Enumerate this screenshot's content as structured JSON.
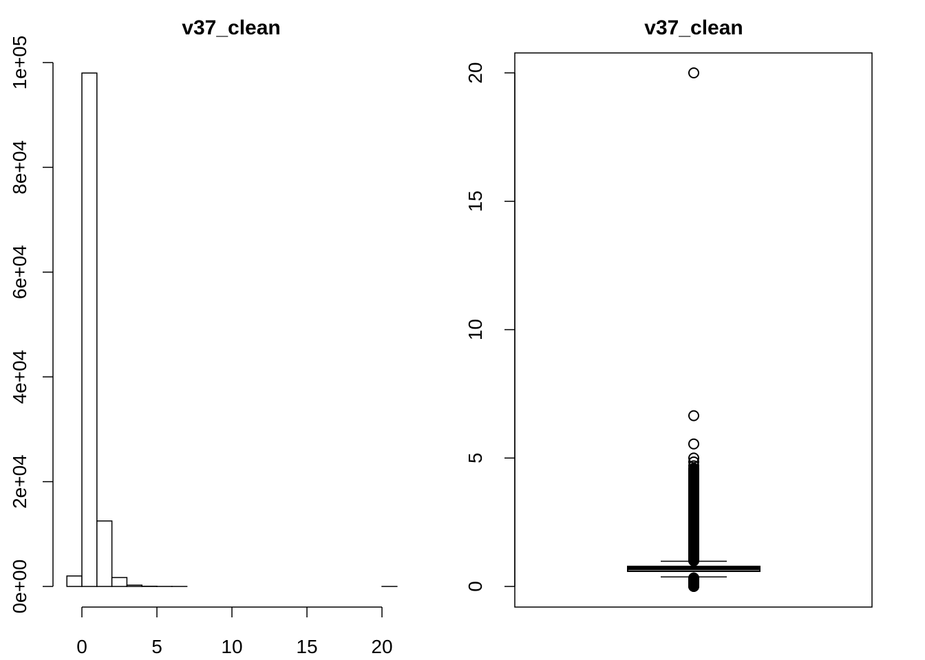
{
  "chart_data": [
    {
      "type": "histogram",
      "title": "v37_clean",
      "xlabel": "",
      "ylabel": "",
      "bin_width": 1,
      "bins": [
        {
          "x0": -1,
          "x1": 0,
          "count": 2000
        },
        {
          "x0": 0,
          "x1": 1,
          "count": 98000
        },
        {
          "x0": 1,
          "x1": 2,
          "count": 12500
        },
        {
          "x0": 2,
          "x1": 3,
          "count": 1700
        },
        {
          "x0": 3,
          "x1": 4,
          "count": 250
        },
        {
          "x0": 4,
          "x1": 5,
          "count": 40
        },
        {
          "x0": 5,
          "x1": 6,
          "count": 5
        },
        {
          "x0": 6,
          "x1": 7,
          "count": 1
        },
        {
          "x0": 7,
          "x1": 8,
          "count": 0
        },
        {
          "x0": 8,
          "x1": 9,
          "count": 0
        },
        {
          "x0": 9,
          "x1": 10,
          "count": 0
        },
        {
          "x0": 10,
          "x1": 11,
          "count": 0
        },
        {
          "x0": 11,
          "x1": 12,
          "count": 0
        },
        {
          "x0": 12,
          "x1": 13,
          "count": 0
        },
        {
          "x0": 13,
          "x1": 14,
          "count": 0
        },
        {
          "x0": 14,
          "x1": 15,
          "count": 0
        },
        {
          "x0": 15,
          "x1": 16,
          "count": 0
        },
        {
          "x0": 16,
          "x1": 17,
          "count": 0
        },
        {
          "x0": 17,
          "x1": 18,
          "count": 0
        },
        {
          "x0": 18,
          "x1": 19,
          "count": 0
        },
        {
          "x0": 19,
          "x1": 20,
          "count": 0
        },
        {
          "x0": 20,
          "x1": 21,
          "count": 1
        }
      ],
      "x_ticks": [
        "0",
        "5",
        "10",
        "15",
        "20"
      ],
      "x_tick_values": [
        0,
        5,
        10,
        15,
        20
      ],
      "y_ticks": [
        "0e+00",
        "2e+04",
        "4e+04",
        "6e+04",
        "8e+04",
        "1e+05"
      ],
      "y_tick_values": [
        0,
        20000,
        40000,
        60000,
        80000,
        100000
      ],
      "xlim": [
        -1,
        21
      ],
      "ylim": [
        0,
        100000
      ]
    },
    {
      "type": "boxplot",
      "title": "v37_clean",
      "xlabel": "",
      "ylabel": "",
      "ylim": [
        0,
        20
      ],
      "y_ticks": [
        "0",
        "5",
        "10",
        "15",
        "20"
      ],
      "y_tick_values": [
        0,
        5,
        10,
        15,
        20
      ],
      "box": {
        "lower_whisker": 0.37,
        "q1": 0.59,
        "median": 0.7,
        "q3": 0.78,
        "upper_whisker": 0.98
      },
      "outliers": [
        20.0,
        6.65,
        5.55,
        5.0,
        4.85,
        4.7,
        4.6,
        4.5,
        4.4,
        4.3,
        4.2,
        4.1,
        4.0,
        3.9,
        3.8,
        3.7,
        3.6,
        3.5,
        3.4,
        3.3,
        3.2,
        3.1,
        3.0,
        2.9,
        2.8,
        2.7,
        2.6,
        2.5,
        2.4,
        2.3,
        2.2,
        2.1,
        2.0,
        1.9,
        1.8,
        1.7,
        1.6,
        1.5,
        1.4,
        1.3,
        1.2,
        1.1,
        1.05,
        1.0,
        0.3,
        0.25,
        0.2,
        0.15,
        0.1,
        0.05,
        0.02,
        0.0
      ]
    }
  ]
}
